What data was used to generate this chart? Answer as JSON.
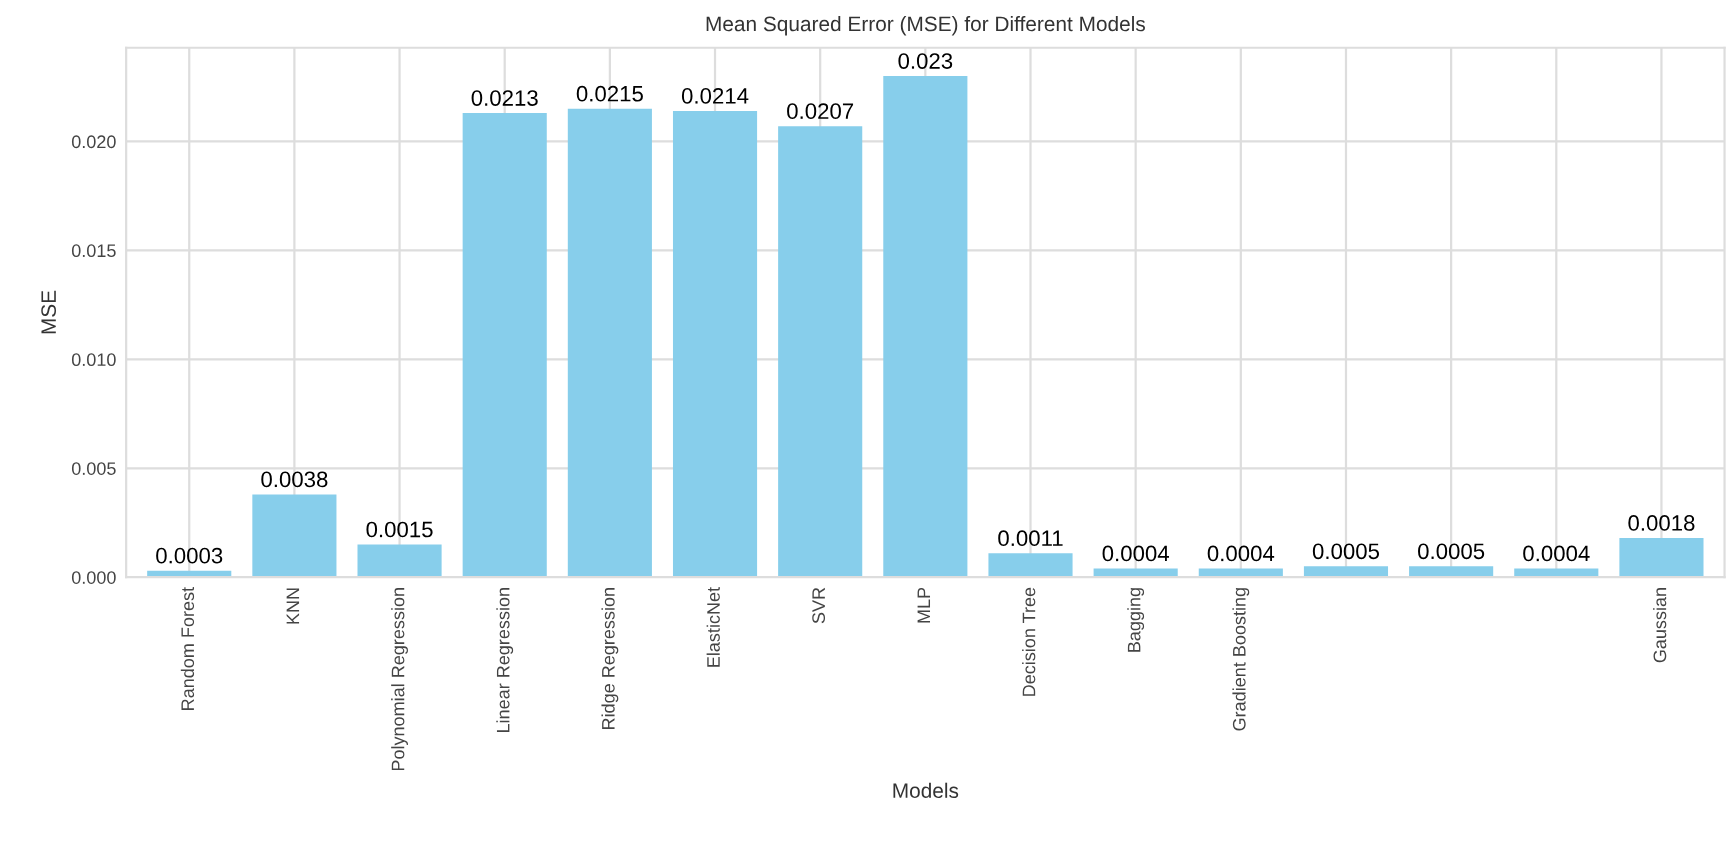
{
  "chart_data": {
    "type": "bar",
    "title": "Mean Squared Error (MSE) for Different Models",
    "xlabel": "Models",
    "ylabel": "MSE",
    "categories": [
      "Random Forest",
      "KNN",
      "Polynomial Regression",
      "Linear Regression",
      "Ridge Regression",
      "ElasticNet",
      "SVR",
      "MLP",
      "Decision Tree",
      "Bagging",
      "Gradient Boosting",
      null,
      null,
      null,
      "Gaussian"
    ],
    "values": [
      0.0003,
      0.0038,
      0.0015,
      0.0213,
      0.0215,
      0.0214,
      0.0207,
      0.023,
      0.0011,
      0.0004,
      0.0004,
      0.0005,
      0.0005,
      0.0004,
      0.0018
    ],
    "color": "#87ceeb",
    "data_labels": true,
    "ylim": [
      0,
      0.0243
    ],
    "yticks": [
      {
        "value": 0,
        "label": "0.000"
      },
      {
        "value": 0.005,
        "label": "0.005"
      },
      {
        "value": 0.01,
        "label": "0.010"
      },
      {
        "value": 0.015,
        "label": "0.015"
      },
      {
        "value": 0.02,
        "label": "0.020"
      }
    ],
    "grid": true
  }
}
